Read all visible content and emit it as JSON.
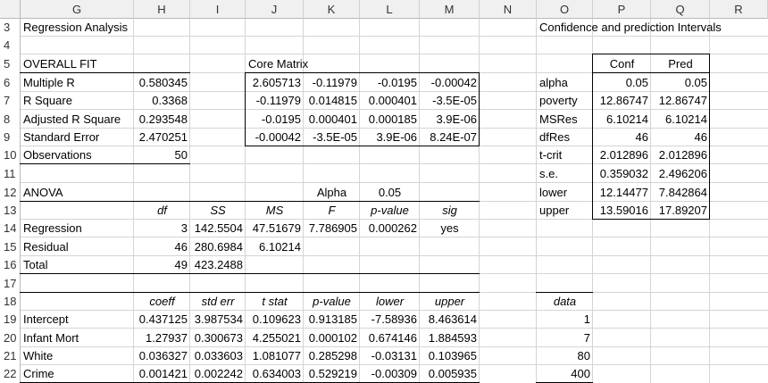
{
  "columns": [
    "G",
    "H",
    "I",
    "J",
    "K",
    "L",
    "M",
    "N",
    "O",
    "P",
    "Q",
    "R"
  ],
  "rows": [
    "3",
    "4",
    "5",
    "6",
    "7",
    "8",
    "9",
    "10",
    "11",
    "12",
    "13",
    "14",
    "15",
    "16",
    "17",
    "18",
    "19",
    "20",
    "21",
    "22"
  ],
  "left_section": {
    "title": "Regression Analysis",
    "overall_fit": {
      "label": "OVERALL FIT",
      "items": [
        {
          "name": "Multiple R",
          "value": "0.580345"
        },
        {
          "name": "R Square",
          "value": "0.3368"
        },
        {
          "name": "Adjusted R Square",
          "value": "0.293548"
        },
        {
          "name": "Standard Error",
          "value": "2.470251"
        },
        {
          "name": "Observations",
          "value": "50"
        }
      ]
    },
    "core_matrix": {
      "label": "Core Matrix",
      "rows": [
        [
          "2.605713",
          "-0.11979",
          "-0.0195",
          "-0.00042"
        ],
        [
          "-0.11979",
          "0.014815",
          "0.000401",
          "-3.5E-05"
        ],
        [
          "-0.0195",
          "0.000401",
          "0.000185",
          "3.9E-06"
        ],
        [
          "-0.00042",
          "-3.5E-05",
          "3.9E-06",
          "8.24E-07"
        ]
      ]
    },
    "anova": {
      "label": "ANOVA",
      "alpha_label": "Alpha",
      "alpha_value": "0.05",
      "headers": [
        "df",
        "SS",
        "MS",
        "F",
        "p-value",
        "sig"
      ],
      "rows": [
        {
          "name": "Regression",
          "cells": [
            "3",
            "142.5504",
            "47.51679",
            "7.786905",
            "0.000262",
            "yes"
          ]
        },
        {
          "name": "Residual",
          "cells": [
            "46",
            "280.6984",
            "6.10214",
            "",
            "",
            ""
          ]
        },
        {
          "name": "Total",
          "cells": [
            "49",
            "423.2488",
            "",
            "",
            "",
            ""
          ]
        }
      ]
    },
    "coefficients": {
      "headers": [
        "coeff",
        "std err",
        "t stat",
        "p-value",
        "lower",
        "upper"
      ],
      "rows": [
        {
          "name": "Intercept",
          "cells": [
            "0.437125",
            "3.987534",
            "0.109623",
            "0.913185",
            "-7.58936",
            "8.463614"
          ]
        },
        {
          "name": "Infant Mort",
          "cells": [
            "1.27937",
            "0.300673",
            "4.255021",
            "0.000102",
            "0.674146",
            "1.884593"
          ]
        },
        {
          "name": "White",
          "cells": [
            "0.036327",
            "0.033603",
            "1.081077",
            "0.285298",
            "-0.03131",
            "0.103965"
          ]
        },
        {
          "name": "Crime",
          "cells": [
            "0.001421",
            "0.002242",
            "0.634003",
            "0.529219",
            "-0.00309",
            "0.005935"
          ]
        }
      ]
    }
  },
  "right_section": {
    "title": "Confidence and prediction Intervals",
    "headers": [
      "Conf",
      "Pred"
    ],
    "rows": [
      {
        "name": "alpha",
        "conf": "0.05",
        "pred": "0.05"
      },
      {
        "name": "poverty",
        "conf": "12.86747",
        "pred": "12.86747"
      },
      {
        "name": "MSRes",
        "conf": "6.10214",
        "pred": "6.10214"
      },
      {
        "name": "dfRes",
        "conf": "46",
        "pred": "46"
      },
      {
        "name": "t-crit",
        "conf": "2.012896",
        "pred": "2.012896"
      },
      {
        "name": "s.e.",
        "conf": "0.359032",
        "pred": "2.496206"
      },
      {
        "name": "lower",
        "conf": "12.14477",
        "pred": "7.842864"
      },
      {
        "name": "upper",
        "conf": "13.59016",
        "pred": "17.89207"
      }
    ],
    "data_label": "data",
    "data_values": [
      "1",
      "7",
      "80",
      "400"
    ]
  }
}
